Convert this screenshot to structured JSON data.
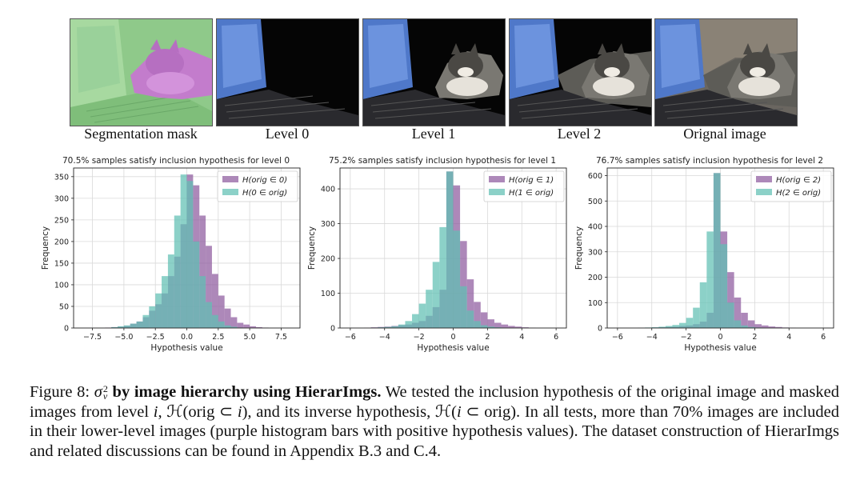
{
  "images": [
    {
      "label": "Segmentation mask"
    },
    {
      "label": "Level 0"
    },
    {
      "label": "Level 1"
    },
    {
      "label": "Level 2"
    },
    {
      "label": "Orignal image"
    }
  ],
  "colors": {
    "purple": "#8e5a9e",
    "teal": "#5fbfb3",
    "overlap": "#3e6f86"
  },
  "chart_data": [
    {
      "type": "histogram",
      "title": "70.5% samples satisfy inclusion hypothesis for level 0",
      "xlabel": "Hypothesis value",
      "ylabel": "Frequency",
      "xlim": [
        -9,
        9
      ],
      "ylim": [
        0,
        370
      ],
      "xticks": [
        "−7.5",
        "−5.0",
        "−2.5",
        "0.0",
        "2.5",
        "5.0",
        "7.5"
      ],
      "xtick_values": [
        -7.5,
        -5.0,
        -2.5,
        0.0,
        2.5,
        5.0,
        7.5
      ],
      "yticks": [
        0,
        50,
        100,
        150,
        200,
        250,
        300,
        350
      ],
      "bin_start": -8.5,
      "bin_width": 0.5,
      "series": [
        {
          "name": "H(orig ∈ 0)",
          "legend_pre": "H(orig",
          "legend_sym": "∈",
          "legend_post": "0)",
          "color": "#8e5a9e",
          "values": [
            0,
            0,
            0,
            0,
            1,
            2,
            3,
            5,
            10,
            15,
            25,
            40,
            55,
            80,
            120,
            165,
            240,
            355,
            330,
            260,
            190,
            125,
            75,
            45,
            25,
            12,
            8,
            4,
            2,
            1,
            0,
            0,
            0,
            0
          ]
        },
        {
          "name": "H(0 ∈ orig)",
          "legend_pre": "H(0",
          "legend_sym": "∈",
          "legend_post": "orig)",
          "color": "#5fbfb3",
          "values": [
            0,
            0,
            0,
            0,
            0,
            2,
            4,
            6,
            10,
            15,
            30,
            50,
            80,
            120,
            170,
            260,
            355,
            340,
            200,
            120,
            60,
            30,
            15,
            6,
            3,
            1,
            0,
            0,
            0,
            0,
            0,
            0,
            0,
            0
          ]
        }
      ]
    },
    {
      "type": "histogram",
      "title": "75.2% samples satisfy inclusion hypothesis for level 1",
      "xlabel": "Hypothesis value",
      "ylabel": "Frequency",
      "xlim": [
        -6.6,
        6.6
      ],
      "ylim": [
        0,
        460
      ],
      "xticks": [
        "−6",
        "−4",
        "−2",
        "0",
        "2",
        "4",
        "6"
      ],
      "xtick_values": [
        -6,
        -4,
        -2,
        0,
        2,
        4,
        6
      ],
      "yticks": [
        0,
        100,
        200,
        300,
        400
      ],
      "bin_start": -6,
      "bin_width": 0.4,
      "series": [
        {
          "name": "H(orig ∈ 1)",
          "legend_pre": "H(orig",
          "legend_sym": "∈",
          "legend_post": "1)",
          "color": "#8e5a9e",
          "values": [
            0,
            0,
            1,
            2,
            3,
            4,
            6,
            8,
            10,
            15,
            20,
            35,
            60,
            110,
            450,
            410,
            250,
            140,
            75,
            45,
            25,
            15,
            10,
            6,
            4,
            2,
            1,
            0,
            0,
            0
          ]
        },
        {
          "name": "H(1 ∈ orig)",
          "legend_pre": "H(1",
          "legend_sym": "∈",
          "legend_post": "orig)",
          "color": "#5fbfb3",
          "values": [
            0,
            0,
            0,
            1,
            2,
            3,
            5,
            10,
            20,
            40,
            70,
            110,
            190,
            290,
            450,
            280,
            120,
            50,
            20,
            8,
            4,
            2,
            1,
            0,
            0,
            0,
            0,
            0,
            0,
            0
          ]
        }
      ]
    },
    {
      "type": "histogram",
      "title": "76.7% samples satisfy inclusion hypothesis for level 2",
      "xlabel": "Hypothesis value",
      "ylabel": "Frequency",
      "xlim": [
        -6.6,
        6.6
      ],
      "ylim": [
        0,
        630
      ],
      "xticks": [
        "−6",
        "−4",
        "−2",
        "0",
        "2",
        "4",
        "6"
      ],
      "xtick_values": [
        -6,
        -4,
        -2,
        0,
        2,
        4,
        6
      ],
      "yticks": [
        0,
        100,
        200,
        300,
        400,
        500,
        600
      ],
      "bin_start": -6,
      "bin_width": 0.4,
      "series": [
        {
          "name": "H(orig ∈ 2)",
          "legend_pre": "H(orig",
          "legend_sym": "∈",
          "legend_post": "2)",
          "color": "#8e5a9e",
          "values": [
            0,
            0,
            0,
            1,
            1,
            2,
            3,
            4,
            5,
            8,
            10,
            15,
            25,
            60,
            610,
            380,
            220,
            120,
            60,
            30,
            15,
            10,
            6,
            4,
            2,
            1,
            0,
            0,
            0,
            0
          ]
        },
        {
          "name": "H(2 ∈ orig)",
          "legend_pre": "H(2",
          "legend_sym": "∈",
          "legend_post": "orig)",
          "color": "#5fbfb3",
          "values": [
            0,
            0,
            0,
            1,
            2,
            3,
            5,
            8,
            12,
            20,
            40,
            80,
            180,
            380,
            610,
            330,
            100,
            30,
            10,
            4,
            2,
            1,
            0,
            0,
            0,
            0,
            0,
            0,
            0,
            0
          ]
        }
      ]
    }
  ],
  "caption": {
    "figure_label": "Figure 8: ",
    "sigma": "σ",
    "sigma_sup": "2",
    "sigma_sub": "v",
    "bold_title": " by image hierarchy using HierarImgs.",
    "p1": " We tested the inclusion hypothesis of the original image and masked images from level ",
    "var_i": "i",
    "p2": ", ",
    "h_symbol": "ℋ",
    "p3": "(orig ⊂ ",
    "p4": "), and its inverse hypothesis, ",
    "p5": "(",
    "p6": " ⊂ orig). In all tests, more than 70% images are included in their lower-level images (purple histogram bars with positive hypothesis values). The dataset construction of HierarImgs and related discussions can be found in Appendix B.3 and C.4."
  }
}
